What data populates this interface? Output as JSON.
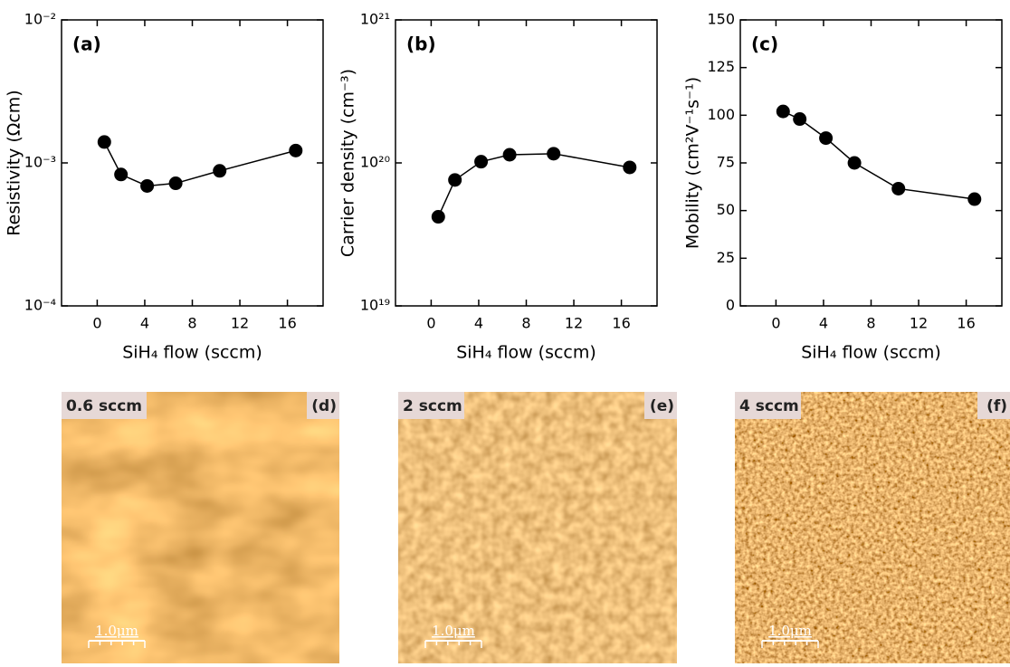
{
  "chart_data": [
    {
      "type": "line",
      "panel_label": "(a)",
      "xlabel": "SiH₄ flow (sccm)",
      "ylabel": "Resistivity (Ωcm)",
      "x": [
        0.6,
        2,
        4.2,
        6.6,
        10.3,
        16.7
      ],
      "series": [
        {
          "color": "#000000",
          "values": [
            0.0014,
            0.00083,
            0.00069,
            0.00072,
            0.00088,
            0.00122
          ]
        }
      ],
      "xlim": [
        -3,
        19
      ],
      "xticks": [
        0,
        4,
        8,
        12,
        16
      ],
      "ylim": [
        0.0001,
        0.01
      ],
      "ylog": true,
      "yticks": [
        {
          "value": 0.0001,
          "label": "10⁻⁴"
        },
        {
          "value": 0.001,
          "label": "10⁻³"
        },
        {
          "value": 0.01,
          "label": "10⁻²"
        }
      ]
    },
    {
      "type": "line",
      "panel_label": "(b)",
      "xlabel": "SiH₄ flow (sccm)",
      "ylabel": "Carrier density (cm⁻³)",
      "x": [
        0.6,
        2,
        4.2,
        6.6,
        10.3,
        16.7
      ],
      "series": [
        {
          "color": "#000000",
          "values": [
            4.2e+19,
            7.6e+19,
            1.02e+20,
            1.14e+20,
            1.16e+20,
            9.3e+19
          ]
        }
      ],
      "xlim": [
        -3,
        19
      ],
      "xticks": [
        0,
        4,
        8,
        12,
        16
      ],
      "ylim": [
        1e+19,
        1e+21
      ],
      "ylog": true,
      "yticks": [
        {
          "value": 1e+19,
          "label": "10¹⁹"
        },
        {
          "value": 1e+20,
          "label": "10²⁰"
        },
        {
          "value": 1e+21,
          "label": "10²¹"
        }
      ]
    },
    {
      "type": "line",
      "panel_label": "(c)",
      "xlabel": "SiH₄ flow (sccm)",
      "ylabel": "Mobility (cm²V⁻¹s⁻¹)",
      "x": [
        0.6,
        2,
        4.2,
        6.6,
        10.3,
        16.7
      ],
      "series": [
        {
          "color": "#000000",
          "values": [
            102,
            98,
            88,
            75,
            61.5,
            56
          ]
        }
      ],
      "xlim": [
        -3,
        19
      ],
      "xticks": [
        0,
        4,
        8,
        12,
        16
      ],
      "ylim": [
        0,
        150
      ],
      "ylog": false,
      "yticks": [
        0,
        25,
        50,
        75,
        100,
        125,
        150
      ]
    }
  ],
  "images": [
    {
      "condition": "0.6 sccm",
      "panel_label": "(d)",
      "scale_bar": "1.0μm"
    },
    {
      "condition": "2 sccm",
      "panel_label": "(e)",
      "scale_bar": "1.0μm"
    },
    {
      "condition": "4 sccm",
      "panel_label": "(f)",
      "scale_bar": "1.0μm"
    }
  ]
}
